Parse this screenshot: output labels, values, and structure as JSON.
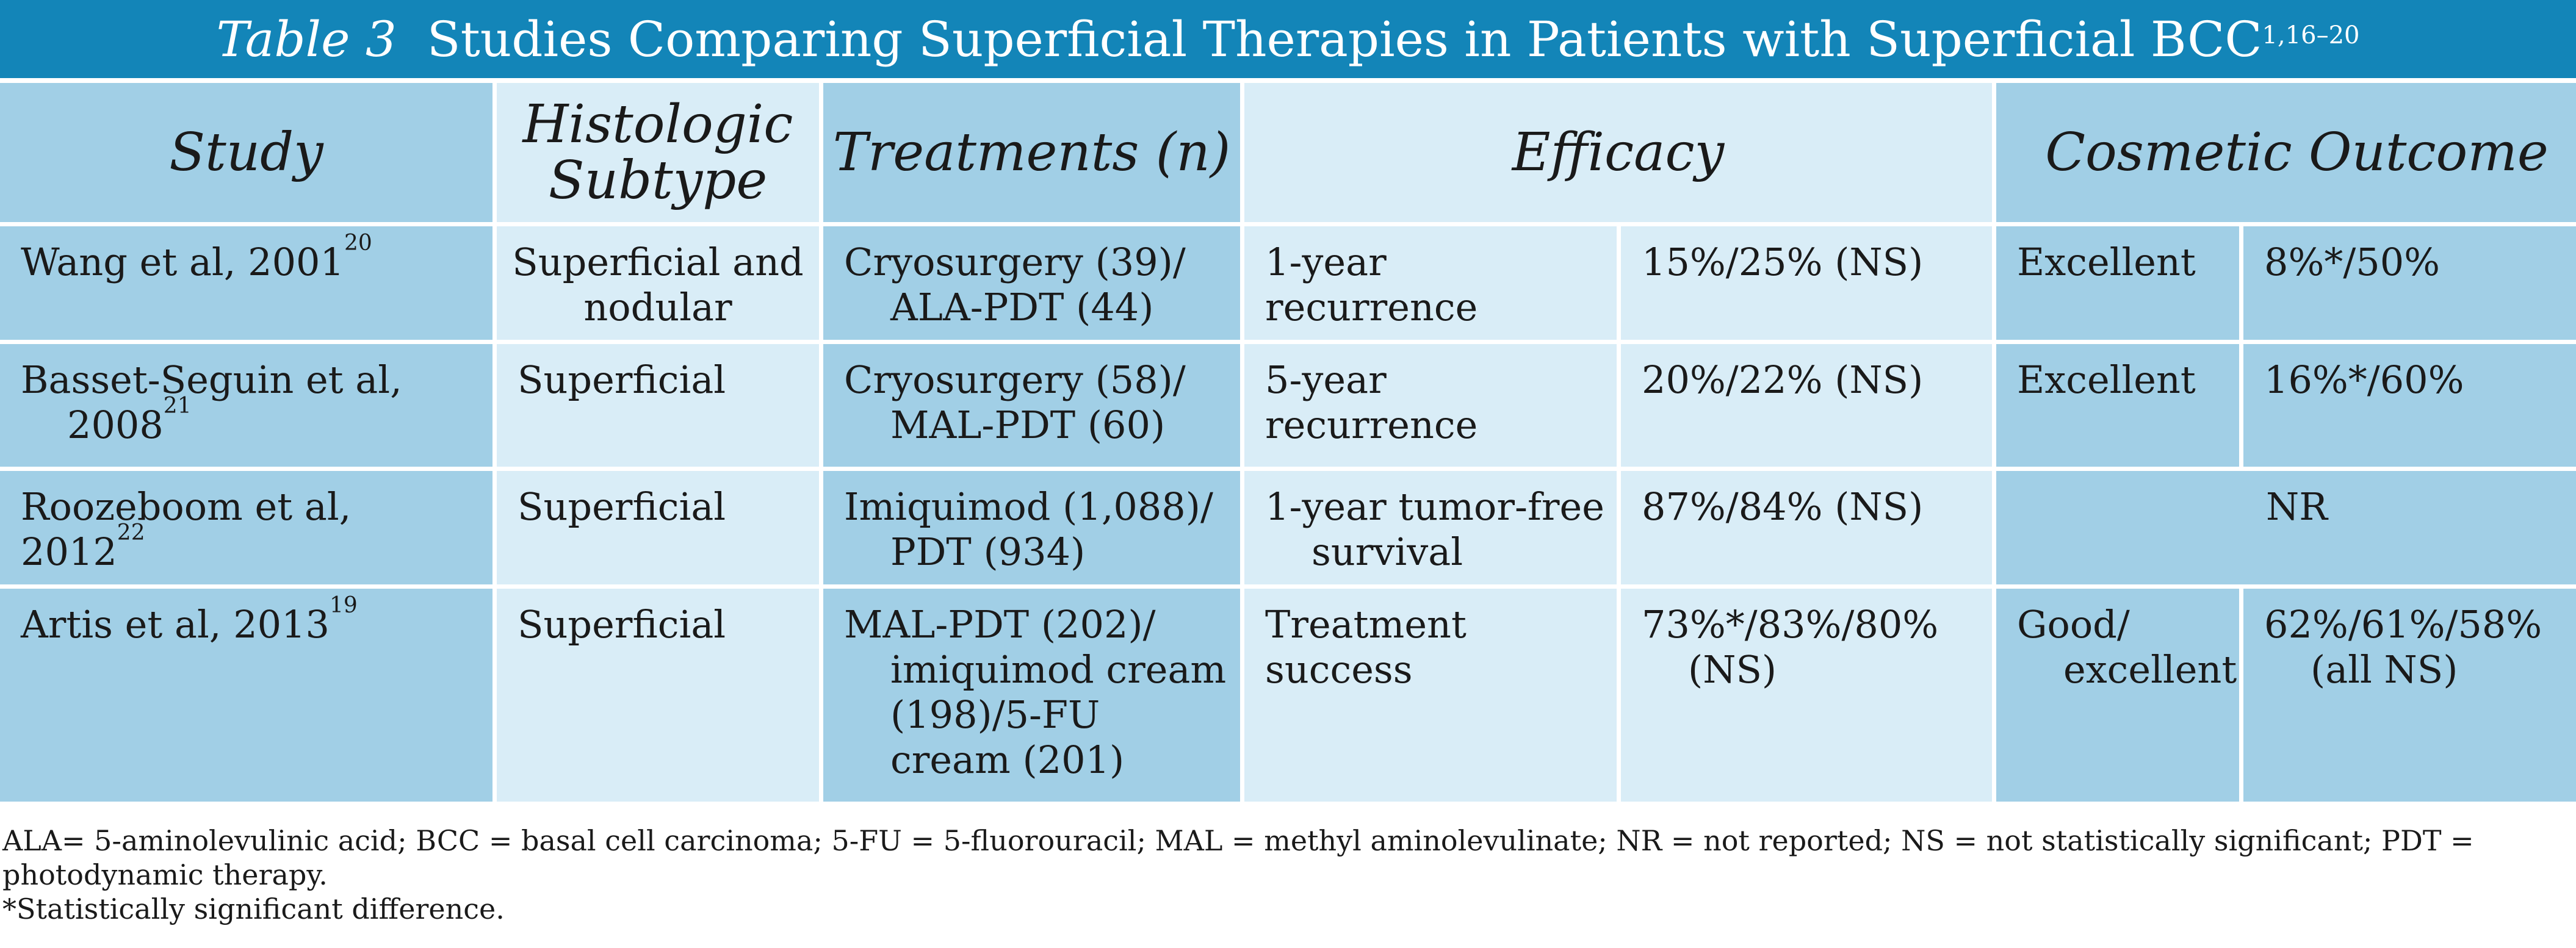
{
  "title": {
    "label": "Table 3",
    "text": "Studies Comparing Superficial Therapies in Patients with Superficial BCC",
    "refs": "1,16–20"
  },
  "headers": {
    "study": "Study",
    "subtype": "Histologic Subtype",
    "treatments": "Treatments (n)",
    "efficacy": "Efficacy",
    "cosmetic": "Cosmetic Outcome"
  },
  "rows": [
    {
      "study": "Wang et al, 2001",
      "ref": "20",
      "subtype": "Superficial and nodular",
      "treatments": "Cryosurgery (39)/ ALA-PDT (44)",
      "efficacy_measure": "1-year recurrence",
      "efficacy_value": "15%/25% (NS)",
      "cosmetic_measure": "Excellent",
      "cosmetic_value": "8%*/50%"
    },
    {
      "study": "Basset-Seguin et al, 2008",
      "ref": "21",
      "subtype": "Superficial",
      "treatments": "Cryosurgery (58)/ MAL-PDT (60)",
      "efficacy_measure": "5-year recurrence",
      "efficacy_value": "20%/22% (NS)",
      "cosmetic_measure": "Excellent",
      "cosmetic_value": "16%*/60%"
    },
    {
      "study": "Roozeboom et al, 2012",
      "ref": "22",
      "subtype": "Superficial",
      "treatments": "Imiquimod (1,088)/ PDT (934)",
      "efficacy_measure": "1-year tumor-free survival",
      "efficacy_value": "87%/84% (NS)",
      "cosmetic": "NR"
    },
    {
      "study": "Artis et al, 2013",
      "ref": "19",
      "subtype": "Superficial",
      "treatments": "MAL-PDT (202)/ imiquimod cream (198)/5-FU cream (201)",
      "efficacy_measure": "Treatment success",
      "efficacy_value": "73%*/83%/80% (NS)",
      "cosmetic_measure": "Good/ excellent",
      "cosmetic_value": "62%/61%/58% (all NS)"
    }
  ],
  "footnotes": {
    "abbreviations": "ALA= 5-aminolevulinic acid; BCC = basal cell carcinoma; 5-FU = 5-fluorouracil; MAL = methyl aminolevulinate; NR = not reported; NS = not statistically significant; PDT = photodynamic therapy.",
    "significance": "*Statistically significant difference."
  },
  "colors": {
    "title_bar": "#1385b8",
    "cell_dark": "#a1cfe6",
    "cell_light": "#d9edf7"
  }
}
